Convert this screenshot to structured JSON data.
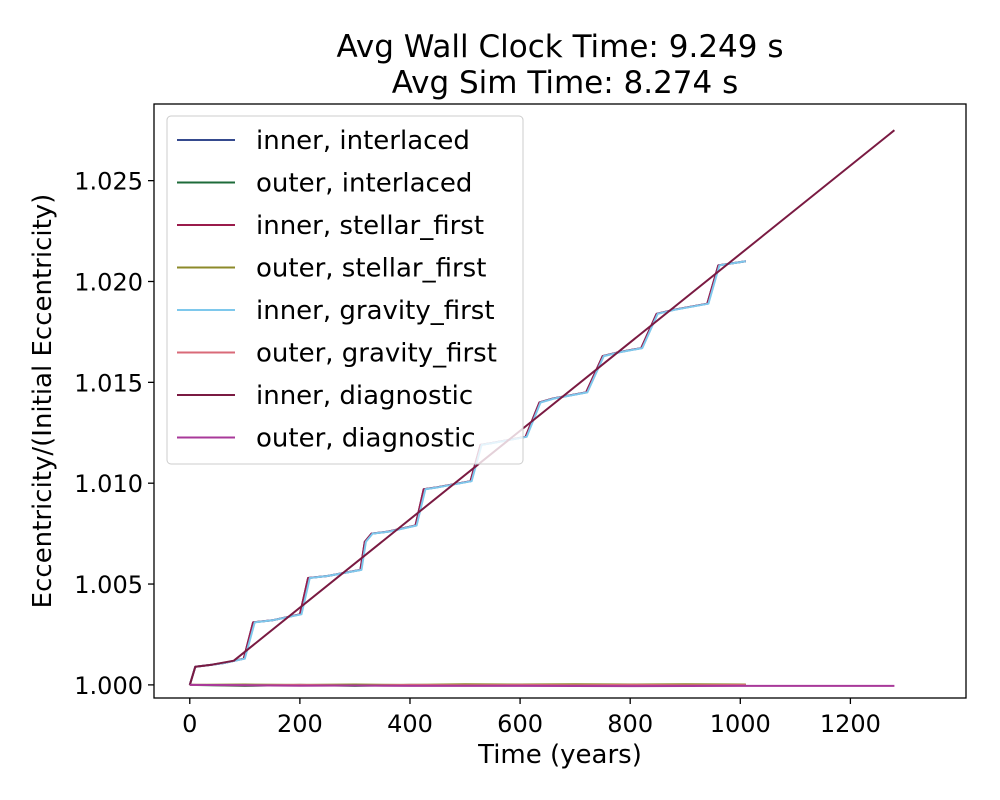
{
  "chart_data": {
    "type": "line",
    "title": [
      "Avg Wall Clock Time: 9.249 s",
      "Avg Sim Time: 8.274 s"
    ],
    "xlabel": "Time (years)",
    "ylabel": "Eccentricity/(Initial Eccentricity)",
    "xlim": [
      -65,
      1410
    ],
    "ylim": [
      0.99935,
      1.0288
    ],
    "xticks": [
      0,
      200,
      400,
      600,
      800,
      1000,
      1200
    ],
    "yticks": [
      1.0,
      1.005,
      1.01,
      1.015,
      1.02,
      1.025
    ],
    "ytick_labels": [
      "1.000",
      "1.005",
      "1.010",
      "1.015",
      "1.020",
      "1.025"
    ],
    "grid": false,
    "legend_position": "upper-left",
    "series": [
      {
        "name": "inner, interlaced",
        "color": "#354a8e",
        "points": [
          [
            0,
            1.0
          ],
          [
            10,
            1.0009
          ],
          [
            40,
            1.001
          ],
          [
            65,
            1.0011
          ],
          [
            98,
            1.0013
          ],
          [
            115,
            1.0031
          ],
          [
            150,
            1.0032
          ],
          [
            200,
            1.0035
          ],
          [
            215,
            1.0053
          ],
          [
            250,
            1.0054
          ],
          [
            310,
            1.0057
          ],
          [
            318,
            1.0071
          ],
          [
            330,
            1.0075
          ],
          [
            360,
            1.0076
          ],
          [
            410,
            1.0079
          ],
          [
            425,
            1.0097
          ],
          [
            450,
            1.0098
          ],
          [
            510,
            1.0101
          ],
          [
            528,
            1.0119
          ],
          [
            550,
            1.012
          ],
          [
            610,
            1.0123
          ],
          [
            635,
            1.014
          ],
          [
            660,
            1.0142
          ],
          [
            720,
            1.0145
          ],
          [
            750,
            1.0163
          ],
          [
            780,
            1.0165
          ],
          [
            820,
            1.0167
          ],
          [
            848,
            1.0184
          ],
          [
            880,
            1.0186
          ],
          [
            940,
            1.0189
          ],
          [
            960,
            1.0208
          ],
          [
            1010,
            1.021
          ]
        ]
      },
      {
        "name": "outer, interlaced",
        "color": "#1e6b3a",
        "points": [
          [
            0,
            1.0
          ],
          [
            100,
            0.99995
          ],
          [
            200,
            1.0
          ],
          [
            300,
            0.99995
          ],
          [
            400,
            1.0
          ],
          [
            500,
            0.99998
          ],
          [
            600,
            1.0
          ],
          [
            700,
            0.99997
          ],
          [
            800,
            1.0
          ],
          [
            900,
            0.99998
          ],
          [
            1010,
            1.0
          ]
        ]
      },
      {
        "name": "inner, stellar_first",
        "color": "#9a1b4b",
        "points": [
          [
            0,
            1.0
          ],
          [
            10,
            1.0009
          ],
          [
            40,
            1.001
          ],
          [
            65,
            1.0011
          ],
          [
            98,
            1.0013
          ],
          [
            115,
            1.0031
          ],
          [
            150,
            1.0032
          ],
          [
            200,
            1.0035
          ],
          [
            215,
            1.0053
          ],
          [
            250,
            1.0054
          ],
          [
            310,
            1.0057
          ],
          [
            318,
            1.0071
          ],
          [
            330,
            1.0075
          ],
          [
            360,
            1.0076
          ],
          [
            410,
            1.0079
          ],
          [
            425,
            1.0097
          ],
          [
            450,
            1.0098
          ],
          [
            510,
            1.0101
          ],
          [
            528,
            1.0119
          ],
          [
            550,
            1.012
          ],
          [
            610,
            1.0123
          ],
          [
            635,
            1.014
          ],
          [
            660,
            1.0142
          ],
          [
            720,
            1.0145
          ],
          [
            750,
            1.0163
          ],
          [
            780,
            1.0165
          ],
          [
            820,
            1.0167
          ],
          [
            848,
            1.0184
          ],
          [
            880,
            1.0186
          ],
          [
            940,
            1.0189
          ],
          [
            960,
            1.0208
          ],
          [
            1010,
            1.021
          ]
        ]
      },
      {
        "name": "outer, stellar_first",
        "color": "#8c8a2a",
        "points": [
          [
            0,
            1.0
          ],
          [
            100,
            1.00002
          ],
          [
            200,
            1.0
          ],
          [
            300,
            1.00002
          ],
          [
            400,
            1.0
          ],
          [
            500,
            1.00003
          ],
          [
            600,
            1.00002
          ],
          [
            700,
            1.00003
          ],
          [
            800,
            1.00002
          ],
          [
            900,
            1.00003
          ],
          [
            1010,
            1.00002
          ]
        ]
      },
      {
        "name": "inner, gravity_first",
        "color": "#7ec8ec",
        "points": [
          [
            0,
            1.0
          ],
          [
            10,
            1.0009
          ],
          [
            40,
            1.001
          ],
          [
            65,
            1.0011
          ],
          [
            100,
            1.0013
          ],
          [
            118,
            1.0031
          ],
          [
            150,
            1.0032
          ],
          [
            203,
            1.0035
          ],
          [
            218,
            1.0053
          ],
          [
            250,
            1.0054
          ],
          [
            312,
            1.0057
          ],
          [
            320,
            1.0071
          ],
          [
            332,
            1.0075
          ],
          [
            362,
            1.0076
          ],
          [
            412,
            1.0079
          ],
          [
            428,
            1.0097
          ],
          [
            452,
            1.0098
          ],
          [
            512,
            1.0101
          ],
          [
            530,
            1.0119
          ],
          [
            552,
            1.012
          ],
          [
            612,
            1.0123
          ],
          [
            637,
            1.014
          ],
          [
            662,
            1.0142
          ],
          [
            722,
            1.0145
          ],
          [
            752,
            1.0163
          ],
          [
            782,
            1.0165
          ],
          [
            822,
            1.0167
          ],
          [
            850,
            1.0184
          ],
          [
            882,
            1.0186
          ],
          [
            942,
            1.0189
          ],
          [
            962,
            1.0208
          ],
          [
            1010,
            1.021
          ]
        ]
      },
      {
        "name": "outer, gravity_first",
        "color": "#d96a78",
        "points": [
          [
            0,
            1.0
          ],
          [
            100,
            0.99998
          ],
          [
            200,
            1.0
          ],
          [
            300,
            0.99997
          ],
          [
            400,
            1.0
          ],
          [
            500,
            0.99998
          ],
          [
            600,
            1.0
          ],
          [
            700,
            0.99998
          ],
          [
            800,
            1.0
          ],
          [
            900,
            0.99998
          ],
          [
            1010,
            1.0
          ]
        ]
      },
      {
        "name": "inner, diagnostic",
        "color": "#7a1a42",
        "points": [
          [
            0,
            1.0
          ],
          [
            10,
            1.0009
          ],
          [
            40,
            1.001
          ],
          [
            80,
            1.0012
          ],
          [
            1280,
            1.0275
          ]
        ]
      },
      {
        "name": "outer, diagnostic",
        "color": "#a8399a",
        "points": [
          [
            0,
            1.0
          ],
          [
            100,
            0.99998
          ],
          [
            200,
            0.99996
          ],
          [
            300,
            0.99997
          ],
          [
            400,
            0.99995
          ],
          [
            600,
            0.99995
          ],
          [
            800,
            0.99994
          ],
          [
            1000,
            0.99995
          ],
          [
            1280,
            0.99995
          ]
        ]
      }
    ]
  }
}
